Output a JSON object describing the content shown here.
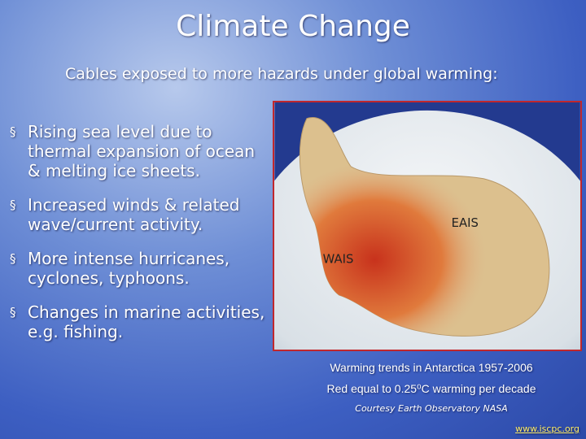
{
  "slide": {
    "title": "Climate Change",
    "subtitle": "Cables exposed to more hazards under global warming:",
    "bullets": [
      "Rising sea level due to thermal expansion of ocean & melting ice sheets.",
      "Increased winds & related wave/current activity.",
      "More intense hurricanes, cyclones, typhoons.",
      "Changes in marine activities, e.g. fishing."
    ],
    "map": {
      "labels": [
        "EAIS",
        "WAIS"
      ]
    },
    "captions": [
      "Warming trends in Antarctica 1957-2006",
      "Red equal to 0.25⁰C warming per decade"
    ],
    "credit": "Courtesy Earth Observatory NASA",
    "link": "www.iscpc.org"
  }
}
